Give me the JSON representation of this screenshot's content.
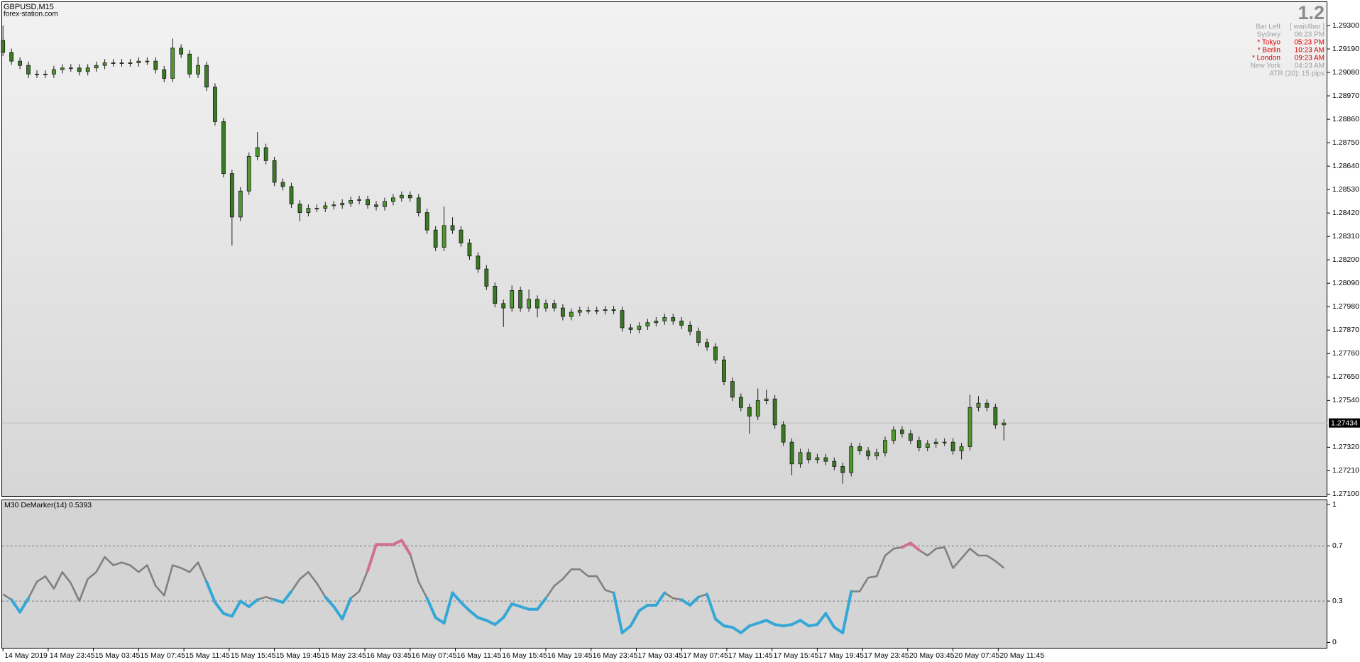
{
  "header": {
    "symbol": "GBPUSD,M15",
    "site": "forex-station.com"
  },
  "info_panel": {
    "version": "1.2",
    "rows": [
      {
        "label": "Bar Left",
        "value": "[ wait4bar ]",
        "color": "#a0a0a0"
      },
      {
        "label": "Sydney",
        "value": "06:23 PM",
        "color": "#a0a0a0"
      },
      {
        "label": "* Tokyo",
        "value": "05:23 PM",
        "color": "#e00000"
      },
      {
        "label": "* Berlin",
        "value": "10:23 AM",
        "color": "#e00000"
      },
      {
        "label": "* London",
        "value": "09:23 AM",
        "color": "#e00000"
      },
      {
        "label": "New York",
        "value": "04:23 AM",
        "color": "#a0a0a0"
      }
    ],
    "footer": "ATR (20): 15 pips",
    "color": "#a0a0a0"
  },
  "chart_data": [
    {
      "type": "candlestick",
      "x": [
        0,
        3,
        6,
        9,
        12,
        15,
        18,
        21,
        24,
        27,
        30,
        33,
        36,
        39,
        42,
        45,
        48,
        51,
        54,
        57,
        60,
        63,
        66,
        69,
        72,
        75,
        78,
        81,
        84,
        87,
        90,
        93,
        96,
        99,
        102,
        105,
        108,
        111,
        114,
        117,
        120,
        123,
        126,
        129,
        132,
        135,
        138,
        141,
        144,
        147,
        150,
        153,
        156,
        159,
        162,
        165,
        168,
        171,
        174,
        177,
        180,
        183,
        186,
        189,
        192,
        195,
        198,
        201,
        204,
        207,
        210,
        213,
        216,
        219,
        222,
        225,
        228,
        231,
        234,
        237,
        240,
        243,
        246,
        249,
        252,
        255,
        258,
        261,
        264,
        267,
        270,
        273,
        276,
        279,
        282,
        285,
        288,
        291,
        294,
        297,
        300,
        303,
        306,
        309,
        312,
        315,
        318,
        321,
        324,
        327,
        330,
        333,
        336,
        339,
        342,
        345,
        348,
        351,
        354
      ],
      "open": [
        1.2923,
        1.29174,
        1.29133,
        1.29113,
        1.29072,
        1.29072,
        1.29072,
        1.29093,
        1.29101,
        1.29101,
        1.29084,
        1.29101,
        1.29113,
        1.29125,
        1.29125,
        1.29125,
        1.29125,
        1.29133,
        1.29133,
        1.29093,
        1.29052,
        1.29194,
        1.29166,
        1.29072,
        1.29113,
        1.29011,
        1.28849,
        1.28605,
        1.28401,
        1.28523,
        1.28686,
        1.28727,
        1.28666,
        1.28564,
        1.28544,
        1.28462,
        1.28422,
        1.28442,
        1.28442,
        1.28454,
        1.28458,
        1.28466,
        1.28479,
        1.28483,
        1.28458,
        1.2845,
        1.28474,
        1.28491,
        1.28503,
        1.28491,
        1.28422,
        1.2834,
        1.28259,
        1.28361,
        1.2834,
        1.28279,
        1.28218,
        1.28157,
        1.28076,
        1.27995,
        1.27974,
        1.28056,
        1.27974,
        1.28015,
        1.27974,
        1.27995,
        1.27974,
        1.27934,
        1.27954,
        1.27962,
        1.27962,
        1.27962,
        1.27966,
        1.27962,
        1.27881,
        1.27873,
        1.27889,
        1.27905,
        1.27913,
        1.27929,
        1.27913,
        1.27893,
        1.27864,
        1.27812,
        1.27791,
        1.2773,
        1.27629,
        1.27555,
        1.27507,
        1.27466,
        1.27539,
        1.27547,
        1.27425,
        1.27344,
        1.27242,
        1.27295,
        1.27262,
        1.27271,
        1.27254,
        1.2723,
        1.27201,
        1.27323,
        1.27303,
        1.27279,
        1.27295,
        1.27352,
        1.27401,
        1.27384,
        1.27352,
        1.27319,
        1.27336,
        1.27344,
        1.27344,
        1.27303,
        1.27323,
        1.27507,
        1.27527,
        1.27507,
        1.27425
      ],
      "high": [
        1.293,
        1.29192,
        1.29151,
        1.29131,
        1.2909,
        1.2909,
        1.29111,
        1.29119,
        1.29119,
        1.29119,
        1.29119,
        1.29131,
        1.29143,
        1.29143,
        1.29143,
        1.29143,
        1.29151,
        1.29151,
        1.29151,
        1.29111,
        1.29239,
        1.29212,
        1.29184,
        1.29154,
        1.29131,
        1.29029,
        1.28867,
        1.28623,
        1.28541,
        1.28704,
        1.288,
        1.28745,
        1.28684,
        1.28582,
        1.28562,
        1.2848,
        1.2846,
        1.2846,
        1.28472,
        1.28476,
        1.28484,
        1.28497,
        1.28501,
        1.28501,
        1.28476,
        1.28492,
        1.28509,
        1.28521,
        1.28521,
        1.28509,
        1.2844,
        1.28358,
        1.2845,
        1.284,
        1.28358,
        1.28297,
        1.28236,
        1.28175,
        1.28094,
        1.28013,
        1.2808,
        1.28074,
        1.2806,
        1.28033,
        1.28013,
        1.28013,
        1.27992,
        1.27972,
        1.2798,
        1.2798,
        1.2798,
        1.27984,
        1.27984,
        1.2798,
        1.27899,
        1.27907,
        1.27923,
        1.27931,
        1.27947,
        1.27947,
        1.27931,
        1.27911,
        1.27882,
        1.2783,
        1.27809,
        1.27748,
        1.27647,
        1.27573,
        1.27525,
        1.27596,
        1.2759,
        1.27565,
        1.27443,
        1.27362,
        1.27313,
        1.27313,
        1.27289,
        1.27289,
        1.27272,
        1.27248,
        1.27341,
        1.27341,
        1.27321,
        1.27313,
        1.2737,
        1.27419,
        1.27419,
        1.27402,
        1.2737,
        1.27354,
        1.27362,
        1.27362,
        1.27362,
        1.27341,
        1.27567,
        1.2756,
        1.27545,
        1.27525,
        1.27452
      ],
      "low": [
        1.29156,
        1.29115,
        1.29095,
        1.29054,
        1.29054,
        1.29054,
        1.29054,
        1.29075,
        1.29083,
        1.29066,
        1.29066,
        1.29083,
        1.29095,
        1.29107,
        1.29107,
        1.29107,
        1.29107,
        1.29115,
        1.29075,
        1.29034,
        1.29034,
        1.29148,
        1.29054,
        1.29054,
        1.28993,
        1.28831,
        1.28587,
        1.28267,
        1.28383,
        1.28505,
        1.28668,
        1.28648,
        1.28546,
        1.28526,
        1.28444,
        1.28381,
        1.28404,
        1.28424,
        1.28424,
        1.28436,
        1.2844,
        1.28448,
        1.28461,
        1.2844,
        1.28432,
        1.28432,
        1.28456,
        1.28473,
        1.28473,
        1.28404,
        1.28322,
        1.28241,
        1.28241,
        1.28322,
        1.28261,
        1.282,
        1.28139,
        1.28058,
        1.27977,
        1.27885,
        1.27956,
        1.27956,
        1.27956,
        1.2793,
        1.27956,
        1.27956,
        1.27916,
        1.27916,
        1.27936,
        1.27944,
        1.27944,
        1.27944,
        1.27944,
        1.27863,
        1.27855,
        1.27855,
        1.27871,
        1.27887,
        1.27895,
        1.27895,
        1.27875,
        1.27846,
        1.27794,
        1.27773,
        1.27712,
        1.27611,
        1.27537,
        1.27489,
        1.27384,
        1.27448,
        1.27521,
        1.27407,
        1.27326,
        1.27189,
        1.27224,
        1.27244,
        1.27244,
        1.27236,
        1.27212,
        1.27149,
        1.27183,
        1.27285,
        1.27261,
        1.27261,
        1.27277,
        1.27334,
        1.27366,
        1.27334,
        1.27301,
        1.27301,
        1.27318,
        1.27326,
        1.27285,
        1.27263,
        1.27305,
        1.27489,
        1.27489,
        1.27407,
        1.27352
      ],
      "close": [
        1.29174,
        1.29133,
        1.29113,
        1.29072,
        1.29072,
        1.29072,
        1.29093,
        1.29101,
        1.29101,
        1.29084,
        1.29101,
        1.29113,
        1.29125,
        1.29125,
        1.29125,
        1.29125,
        1.29133,
        1.29133,
        1.29093,
        1.29052,
        1.29194,
        1.29166,
        1.29072,
        1.29113,
        1.29011,
        1.28849,
        1.28605,
        1.28401,
        1.28523,
        1.28686,
        1.28727,
        1.28666,
        1.28564,
        1.28544,
        1.28462,
        1.28422,
        1.28442,
        1.28442,
        1.28454,
        1.28458,
        1.28466,
        1.28479,
        1.28483,
        1.28458,
        1.2845,
        1.28474,
        1.28491,
        1.28503,
        1.28491,
        1.28422,
        1.2834,
        1.28259,
        1.28361,
        1.2834,
        1.28279,
        1.28218,
        1.28157,
        1.28076,
        1.27995,
        1.27974,
        1.28056,
        1.27974,
        1.28015,
        1.27974,
        1.27995,
        1.27974,
        1.27934,
        1.27954,
        1.27962,
        1.27962,
        1.27962,
        1.27966,
        1.27962,
        1.27881,
        1.27873,
        1.27889,
        1.27905,
        1.27913,
        1.27929,
        1.27913,
        1.27893,
        1.27864,
        1.27812,
        1.27791,
        1.2773,
        1.27629,
        1.27555,
        1.27507,
        1.27466,
        1.27539,
        1.27547,
        1.27425,
        1.27344,
        1.27242,
        1.27295,
        1.27262,
        1.27271,
        1.27254,
        1.2723,
        1.27201,
        1.27323,
        1.27303,
        1.27279,
        1.27295,
        1.27352,
        1.27401,
        1.27384,
        1.27352,
        1.27319,
        1.27336,
        1.27344,
        1.27344,
        1.27303,
        1.27323,
        1.27507,
        1.27527,
        1.27507,
        1.27425,
        1.27434
      ],
      "xlim": [
        -0.3,
        468.4
      ],
      "ylim": [
        1.27088,
        1.2941
      ],
      "yticks": [
        {
          "value": 1.293,
          "label": "1.29300"
        },
        {
          "value": 1.2919,
          "label": "1.29190"
        },
        {
          "value": 1.2908,
          "label": "1.29080"
        },
        {
          "value": 1.2897,
          "label": "1.28970"
        },
        {
          "value": 1.2886,
          "label": "1.28860"
        },
        {
          "value": 1.2875,
          "label": "1.28750"
        },
        {
          "value": 1.2864,
          "label": "1.28640"
        },
        {
          "value": 1.2853,
          "label": "1.28530"
        },
        {
          "value": 1.2842,
          "label": "1.28420"
        },
        {
          "value": 1.2831,
          "label": "1.28310"
        },
        {
          "value": 1.282,
          "label": "1.28200"
        },
        {
          "value": 1.2809,
          "label": "1.28090"
        },
        {
          "value": 1.2798,
          "label": "1.27980"
        },
        {
          "value": 1.2787,
          "label": "1.27870"
        },
        {
          "value": 1.2776,
          "label": "1.27760"
        },
        {
          "value": 1.2765,
          "label": "1.27650"
        },
        {
          "value": 1.2754,
          "label": "1.27540"
        },
        {
          "value": 1.2732,
          "label": "1.27320"
        },
        {
          "value": 1.2721,
          "label": "1.27210"
        },
        {
          "value": 1.271,
          "label": "1.27100"
        }
      ],
      "current_price": 1.27434,
      "bull_color": "#4e9a2c",
      "bear_color": "#3a7a22",
      "wick_color": "#1a1a1a",
      "grid": false
    },
    {
      "type": "line",
      "title": "M30 DeMarker(14) 0.5393",
      "x": [
        0,
        3,
        6,
        9,
        12,
        15,
        18,
        21,
        24,
        27,
        30,
        33,
        36,
        39,
        42,
        45,
        48,
        51,
        54,
        57,
        60,
        63,
        66,
        69,
        72,
        75,
        78,
        81,
        84,
        87,
        90,
        93,
        96,
        99,
        102,
        105,
        108,
        111,
        114,
        117,
        120,
        123,
        126,
        129,
        132,
        135,
        138,
        141,
        144,
        147,
        150,
        153,
        156,
        159,
        162,
        165,
        168,
        171,
        174,
        177,
        180,
        183,
        186,
        189,
        192,
        195,
        198,
        201,
        204,
        207,
        210,
        213,
        216,
        219,
        222,
        225,
        228,
        231,
        234,
        237,
        240,
        243,
        246,
        249,
        252,
        255,
        258,
        261,
        264,
        267,
        270,
        273,
        276,
        279,
        282,
        285,
        288,
        291,
        294,
        297,
        300,
        303,
        306,
        309,
        312,
        315,
        318,
        321,
        324,
        327,
        330,
        333,
        336,
        339,
        342,
        345,
        348,
        351,
        354
      ],
      "values": [
        0.35,
        0.31,
        0.22,
        0.32,
        0.44,
        0.48,
        0.39,
        0.51,
        0.43,
        0.3,
        0.46,
        0.51,
        0.62,
        0.56,
        0.58,
        0.56,
        0.51,
        0.56,
        0.41,
        0.34,
        0.56,
        0.54,
        0.51,
        0.58,
        0.44,
        0.29,
        0.21,
        0.19,
        0.3,
        0.26,
        0.31,
        0.33,
        0.31,
        0.29,
        0.37,
        0.46,
        0.51,
        0.43,
        0.33,
        0.26,
        0.17,
        0.32,
        0.37,
        0.52,
        0.71,
        0.71,
        0.71,
        0.74,
        0.64,
        0.44,
        0.32,
        0.18,
        0.14,
        0.36,
        0.29,
        0.23,
        0.18,
        0.16,
        0.13,
        0.18,
        0.28,
        0.26,
        0.24,
        0.24,
        0.32,
        0.41,
        0.46,
        0.53,
        0.53,
        0.48,
        0.48,
        0.38,
        0.36,
        0.07,
        0.12,
        0.23,
        0.27,
        0.27,
        0.36,
        0.32,
        0.31,
        0.27,
        0.33,
        0.35,
        0.17,
        0.12,
        0.11,
        0.07,
        0.12,
        0.14,
        0.16,
        0.13,
        0.12,
        0.13,
        0.16,
        0.12,
        0.13,
        0.21,
        0.11,
        0.07,
        0.37,
        0.37,
        0.47,
        0.48,
        0.63,
        0.68,
        0.69,
        0.72,
        0.67,
        0.63,
        0.68,
        0.69,
        0.54,
        0.61,
        0.68,
        0.63,
        0.63,
        0.59,
        0.54
      ],
      "color": "#808080",
      "low_color": "#35a7d6",
      "high_color": "#d0708c",
      "levels": [
        0.7,
        0.3
      ],
      "xlim": [
        -0.3,
        468.4
      ],
      "ylim": [
        -0.044,
        1.031
      ],
      "yticks": [
        1,
        0.7,
        0.3,
        0
      ],
      "xticks": [
        {
          "value": 0,
          "label": "14 May 2019"
        },
        {
          "value": 16,
          "label": "14 May 23:45"
        },
        {
          "value": 32,
          "label": "15 May 03:45"
        },
        {
          "value": 48,
          "label": "15 May 07:45"
        },
        {
          "value": 64,
          "label": "15 May 11:45"
        },
        {
          "value": 80,
          "label": "15 May 15:45"
        },
        {
          "value": 96,
          "label": "15 May 19:45"
        },
        {
          "value": 112,
          "label": "15 May 23:45"
        },
        {
          "value": 128,
          "label": "16 May 03:45"
        },
        {
          "value": 144,
          "label": "16 May 07:45"
        },
        {
          "value": 160,
          "label": "16 May 11:45"
        },
        {
          "value": 176,
          "label": "16 May 15:45"
        },
        {
          "value": 192,
          "label": "16 May 19:45"
        },
        {
          "value": 208,
          "label": "16 May 23:45"
        },
        {
          "value": 224,
          "label": "17 May 03:45"
        },
        {
          "value": 240,
          "label": "17 May 07:45"
        },
        {
          "value": 256,
          "label": "17 May 11:45"
        },
        {
          "value": 272,
          "label": "17 May 15:45"
        },
        {
          "value": 288,
          "label": "17 May 19:45"
        },
        {
          "value": 304,
          "label": "17 May 23:45"
        },
        {
          "value": 320,
          "label": "20 May 03:45"
        },
        {
          "value": 336,
          "label": "20 May 07:45"
        },
        {
          "value": 352,
          "label": "20 May 11:45"
        }
      ]
    }
  ]
}
